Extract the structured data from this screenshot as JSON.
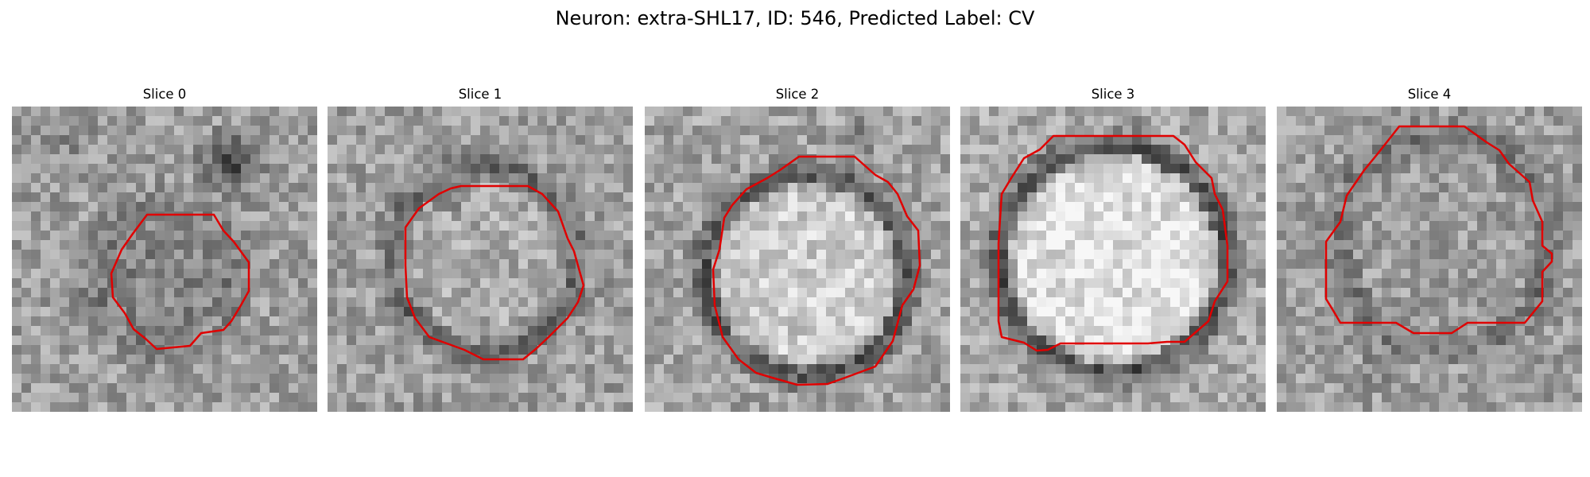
{
  "figure": {
    "title": "Neuron: extra-SHL17, ID: 546, Predicted Label: CV",
    "contour_color": "#e00000",
    "panels": [
      {
        "title": "Slice 0"
      },
      {
        "title": "Slice 1"
      },
      {
        "title": "Slice 2"
      },
      {
        "title": "Slice 3"
      },
      {
        "title": "Slice 4"
      }
    ]
  }
}
